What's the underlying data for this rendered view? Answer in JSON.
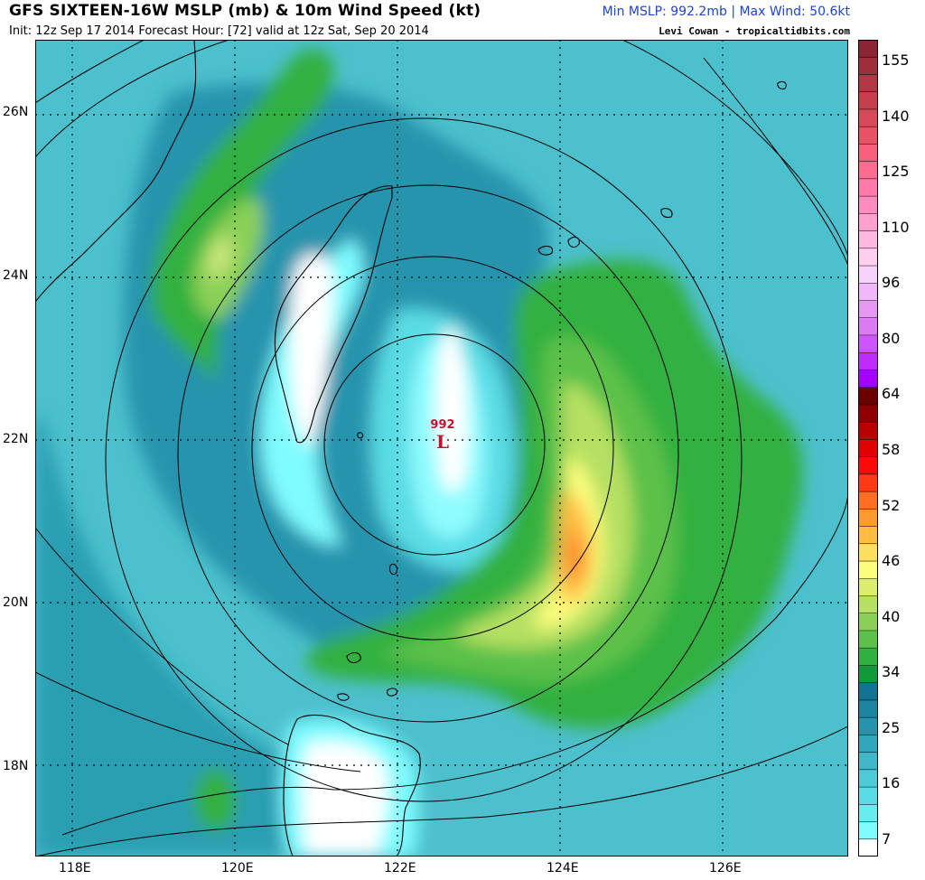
{
  "header": {
    "title": "GFS SIXTEEN-16W MSLP (mb) & 10m Wind Speed (kt)",
    "init": "Init: 12z Sep 17 2014 Forecast Hour: [72] valid at 12z Sat, Sep 20 2014",
    "stats": "Min MSLP: 992.2mb | Max Wind: 50.6kt",
    "credit": "Levi Cowan - tropicaltidbits.com"
  },
  "map": {
    "lon_range": [
      117.5,
      127.5
    ],
    "lat_range": [
      16.9,
      26.9
    ],
    "lon_labels": [
      "118E",
      "120E",
      "122E",
      "124E",
      "126E"
    ],
    "lat_labels": [
      "26N",
      "24N",
      "22N",
      "20N",
      "18N"
    ],
    "grid_lines": "dotted",
    "low_center": {
      "pressure": "992",
      "symbol": "L",
      "lon": 122.55,
      "lat": 22.0
    },
    "colors": {
      "low_marker": "#c8102e",
      "land_outline": "#000000",
      "isobar": "#000000"
    }
  },
  "colorbar": {
    "labels": [
      "155",
      "140",
      "125",
      "110",
      "96",
      "80",
      "64",
      "58",
      "52",
      "46",
      "40",
      "34",
      "25",
      "16",
      "7"
    ],
    "colors": [
      "#ffffff",
      "#7ffcff",
      "#67ecf0",
      "#5adce4",
      "#4ccad6",
      "#3fb8c8",
      "#32a6ba",
      "#2694ad",
      "#1c849f",
      "#137392",
      "#109a3a",
      "#30b040",
      "#5cc14a",
      "#8ad057",
      "#b6e062",
      "#dcee6e",
      "#fbfd7c",
      "#ffe05c",
      "#ffbe43",
      "#ff9a2f",
      "#ff6e20",
      "#ff3a14",
      "#ff0808",
      "#df0000",
      "#b80000",
      "#8f0000",
      "#6a0000",
      "#a800ff",
      "#bd2bff",
      "#cd55ff",
      "#db7bf3",
      "#e699f3",
      "#efb8f7",
      "#f7d2fb",
      "#ffd0ee",
      "#ffb8df",
      "#ffa0cf",
      "#ff8cbf",
      "#ff7aa9",
      "#ff6c91",
      "#f75f7a",
      "#e85465",
      "#d84a57",
      "#c5404c",
      "#b23744",
      "#9e2e3c",
      "#8a2535"
    ]
  }
}
